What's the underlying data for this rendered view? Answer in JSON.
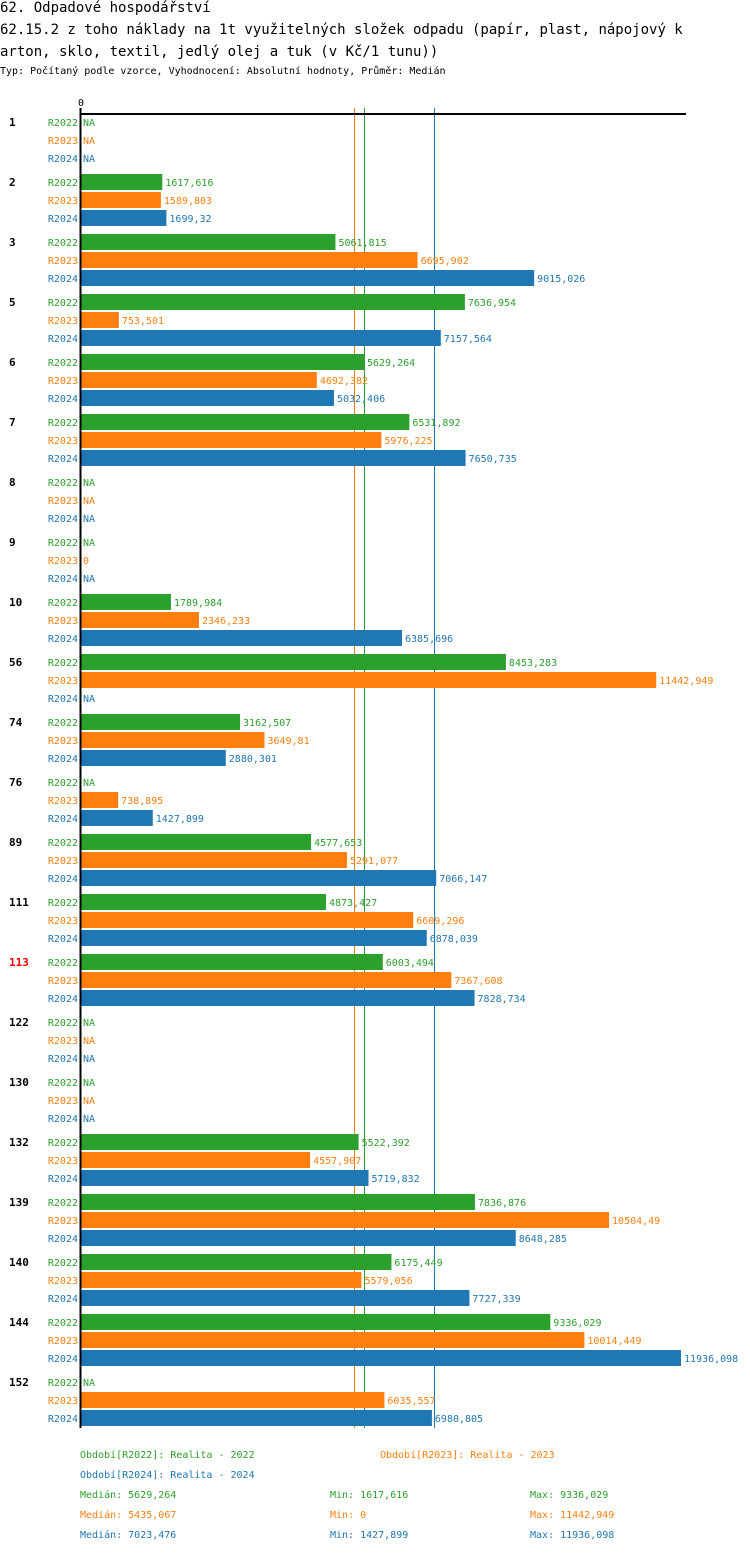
{
  "header": {
    "section_title": "62. Odpadové hospodářství",
    "title_line1": "62.15.2 z toho náklady na 1t využitelných složek odpadu (papír, plast, nápojový k",
    "title_line2": "arton, sklo, textil, jedlý olej a tuk (v Kč/1 tunu))",
    "subtitle": "Typ: Počítaný podle vzorce, Vyhodnocení: Absolutní hodnoty, Průměr: Medián"
  },
  "colors": {
    "R2022": "#2ca02c",
    "R2023": "#ff7f0e",
    "R2024": "#1f77b4",
    "highlight": "#ff0000",
    "axis": "#000000"
  },
  "chart_data": {
    "type": "bar",
    "orientation": "horizontal",
    "title": "62.15.2 z toho náklady na 1t využitelných složek odpadu (papír, plast, nápojový karton, sklo, textil, jedlý olej a tuk (v Kč/1 tunu))",
    "xlabel": "",
    "ylabel": "",
    "x_tick_labels": [
      "0"
    ],
    "xlim": [
      0,
      11936.098
    ],
    "grid": false,
    "series_names": [
      "R2022",
      "R2023",
      "R2024"
    ],
    "highlighted_category": "113",
    "categories": [
      "1",
      "2",
      "3",
      "5",
      "6",
      "7",
      "8",
      "9",
      "10",
      "56",
      "74",
      "76",
      "89",
      "111",
      "113",
      "122",
      "130",
      "132",
      "139",
      "140",
      "144",
      "152"
    ],
    "series": [
      {
        "name": "R2022",
        "values": [
          null,
          1617.616,
          5061.815,
          7636.954,
          5629.264,
          6531.892,
          null,
          null,
          1789.984,
          8453.283,
          3162.507,
          null,
          4577.653,
          4873.427,
          6003.494,
          null,
          null,
          5522.392,
          7836.876,
          6175.449,
          9336.029,
          null
        ],
        "labels": [
          "NA",
          "1617,616",
          "5061,815",
          "7636,954",
          "5629,264",
          "6531,892",
          "NA",
          "NA",
          "1789,984",
          "8453,283",
          "3162,507",
          "NA",
          "4577,653",
          "4873,427",
          "6003,494",
          "NA",
          "NA",
          "5522,392",
          "7836,876",
          "6175,449",
          "9336,029",
          "NA"
        ]
      },
      {
        "name": "R2023",
        "values": [
          null,
          1589.803,
          6695.902,
          753.501,
          4692.382,
          5976.225,
          null,
          0,
          2346.233,
          11442.949,
          3649.81,
          738.895,
          5291.077,
          6609.296,
          7367.608,
          null,
          null,
          4557.907,
          10504.49,
          5579.056,
          10014.449,
          6035.557
        ],
        "labels": [
          "NA",
          "1589,803",
          "6695,902",
          "753,501",
          "4692,382",
          "5976,225",
          "NA",
          "0",
          "2346,233",
          "11442,949",
          "3649,81",
          "738,895",
          "5291,077",
          "6609,296",
          "7367,608",
          "NA",
          "NA",
          "4557,907",
          "10504,49",
          "5579,056",
          "10014,449",
          "6035,557"
        ]
      },
      {
        "name": "R2024",
        "values": [
          null,
          1699.32,
          9015.026,
          7157.564,
          5032.406,
          7650.735,
          null,
          null,
          6385.696,
          null,
          2880.301,
          1427.899,
          7066.147,
          6878.039,
          7828.734,
          null,
          null,
          5719.832,
          8648.285,
          7727.339,
          11936.098,
          6980.805
        ],
        "labels": [
          "NA",
          "1699,32",
          "9015,026",
          "7157,564",
          "5032,406",
          "7650,735",
          "NA",
          "NA",
          "6385,696",
          "NA",
          "2880,301",
          "1427,899",
          "7066,147",
          "6878,039",
          "7828,734",
          "NA",
          "NA",
          "5719,832",
          "8648,285",
          "7727,339",
          "11936,098",
          "6980,805"
        ]
      }
    ],
    "reference_lines": [
      {
        "series": "R2022",
        "type": "median",
        "value": 5629.264
      },
      {
        "series": "R2023",
        "type": "median",
        "value": 5435.067
      },
      {
        "series": "R2024",
        "type": "median",
        "value": 7023.476
      }
    ]
  },
  "legend": {
    "periods": [
      {
        "series": "R2022",
        "text": "Období[R2022]: Realita - 2022"
      },
      {
        "series": "R2023",
        "text": "Období[R2023]: Realita - 2023"
      },
      {
        "series": "R2024",
        "text": "Období[R2024]: Realita - 2024"
      }
    ],
    "stats": [
      {
        "series": "R2022",
        "median": "Medián: 5629,264",
        "min": "Min: 1617,616",
        "max": "Max: 9336,029"
      },
      {
        "series": "R2023",
        "median": "Medián: 5435,067",
        "min": "Min: 0",
        "max": "Max: 11442,949"
      },
      {
        "series": "R2024",
        "median": "Medián: 7023,476",
        "min": "Min: 1427,899",
        "max": "Max: 11936,098"
      }
    ]
  }
}
